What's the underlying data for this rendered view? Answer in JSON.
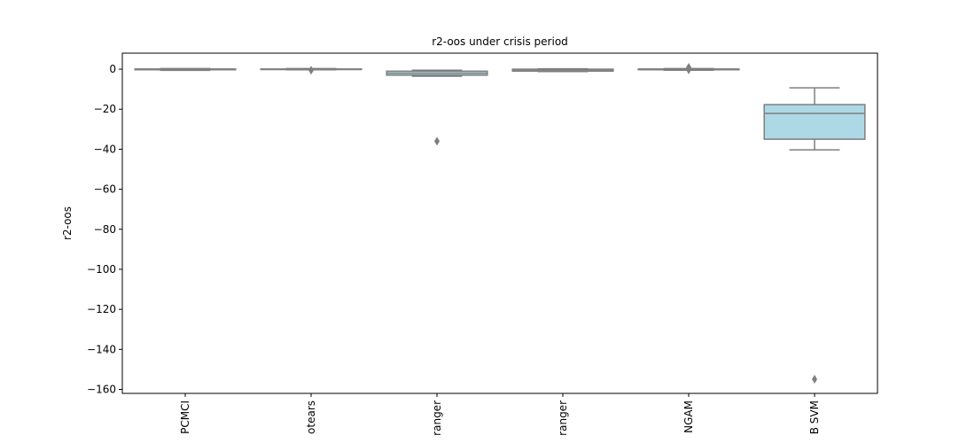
{
  "chart_data": {
    "type": "box",
    "title": "r2-oos under crisis period",
    "y_label": "r2-oos",
    "categories": [
      "PCMCI",
      "otears",
      "ranger",
      "ranger",
      "NGAM",
      "B SVM"
    ],
    "color": "#add8e6",
    "edge_color": "#7f7f7f",
    "boxes": [
      {
        "whislo": -0.6,
        "q1": -0.3,
        "med": 0,
        "q3": 0.1,
        "whishi": 0.3,
        "fliers": []
      },
      {
        "whislo": -0.3,
        "q1": -0.2,
        "med": 0,
        "q3": 0.1,
        "whishi": 0.3,
        "fliers": [
          -0.5
        ]
      },
      {
        "whislo": -3.5,
        "q1": -3,
        "med": -2,
        "q3": -1,
        "whishi": -0.5,
        "fliers": [
          -36
        ]
      },
      {
        "whislo": -1.2,
        "q1": -1,
        "med": -0.3,
        "q3": 0,
        "whishi": 0.2,
        "fliers": []
      },
      {
        "whislo": -0.5,
        "q1": -0.3,
        "med": 0,
        "q3": 0.1,
        "whishi": 0.3,
        "fliers": [
          0.9,
          -0.3
        ]
      },
      {
        "whislo": -40.3,
        "q1": -35,
        "med": -22.1,
        "q3": -17.7,
        "whishi": -9.3,
        "fliers": [
          -154.9
        ]
      }
    ],
    "ylim": [
      -162,
      8
    ],
    "yticks": [
      0,
      {
        "value": -20,
        "label": "−20"
      },
      {
        "value": -40,
        "label": "−40"
      },
      {
        "value": -60,
        "label": "−60"
      },
      {
        "value": -80,
        "label": "−80"
      },
      {
        "value": -100,
        "label": "−100"
      },
      {
        "value": -120,
        "label": "−120"
      },
      {
        "value": -140,
        "label": "−140"
      },
      {
        "value": -160,
        "label": "−160"
      }
    ]
  }
}
